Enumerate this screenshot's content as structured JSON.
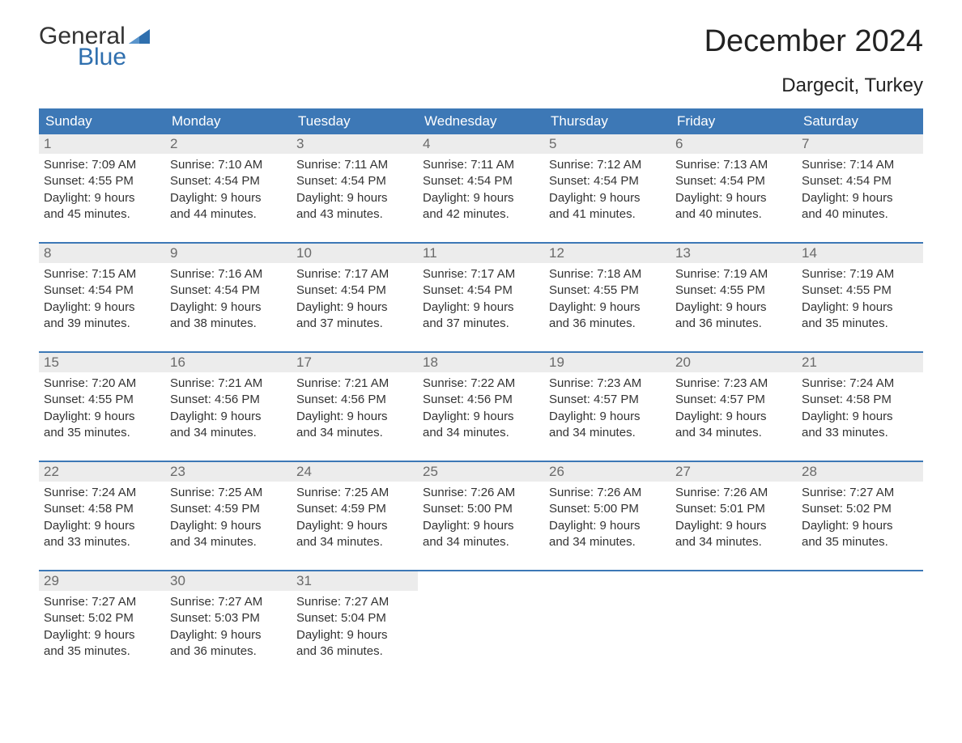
{
  "logo": {
    "general": "General",
    "blue": "Blue"
  },
  "title": "December 2024",
  "location": "Dargecit, Turkey",
  "colors": {
    "header_bg": "#3d78b6",
    "header_fg": "#ffffff",
    "daynum_bg": "#ececec",
    "daynum_fg": "#6a6a6a",
    "body_fg": "#333333",
    "logo_blue": "#2f6fae",
    "week_border": "#3d78b6",
    "page_bg": "#ffffff"
  },
  "day_names": [
    "Sunday",
    "Monday",
    "Tuesday",
    "Wednesday",
    "Thursday",
    "Friday",
    "Saturday"
  ],
  "weeks": [
    [
      {
        "n": "1",
        "sunrise": "Sunrise: 7:09 AM",
        "sunset": "Sunset: 4:55 PM",
        "d1": "Daylight: 9 hours",
        "d2": "and 45 minutes."
      },
      {
        "n": "2",
        "sunrise": "Sunrise: 7:10 AM",
        "sunset": "Sunset: 4:54 PM",
        "d1": "Daylight: 9 hours",
        "d2": "and 44 minutes."
      },
      {
        "n": "3",
        "sunrise": "Sunrise: 7:11 AM",
        "sunset": "Sunset: 4:54 PM",
        "d1": "Daylight: 9 hours",
        "d2": "and 43 minutes."
      },
      {
        "n": "4",
        "sunrise": "Sunrise: 7:11 AM",
        "sunset": "Sunset: 4:54 PM",
        "d1": "Daylight: 9 hours",
        "d2": "and 42 minutes."
      },
      {
        "n": "5",
        "sunrise": "Sunrise: 7:12 AM",
        "sunset": "Sunset: 4:54 PM",
        "d1": "Daylight: 9 hours",
        "d2": "and 41 minutes."
      },
      {
        "n": "6",
        "sunrise": "Sunrise: 7:13 AM",
        "sunset": "Sunset: 4:54 PM",
        "d1": "Daylight: 9 hours",
        "d2": "and 40 minutes."
      },
      {
        "n": "7",
        "sunrise": "Sunrise: 7:14 AM",
        "sunset": "Sunset: 4:54 PM",
        "d1": "Daylight: 9 hours",
        "d2": "and 40 minutes."
      }
    ],
    [
      {
        "n": "8",
        "sunrise": "Sunrise: 7:15 AM",
        "sunset": "Sunset: 4:54 PM",
        "d1": "Daylight: 9 hours",
        "d2": "and 39 minutes."
      },
      {
        "n": "9",
        "sunrise": "Sunrise: 7:16 AM",
        "sunset": "Sunset: 4:54 PM",
        "d1": "Daylight: 9 hours",
        "d2": "and 38 minutes."
      },
      {
        "n": "10",
        "sunrise": "Sunrise: 7:17 AM",
        "sunset": "Sunset: 4:54 PM",
        "d1": "Daylight: 9 hours",
        "d2": "and 37 minutes."
      },
      {
        "n": "11",
        "sunrise": "Sunrise: 7:17 AM",
        "sunset": "Sunset: 4:54 PM",
        "d1": "Daylight: 9 hours",
        "d2": "and 37 minutes."
      },
      {
        "n": "12",
        "sunrise": "Sunrise: 7:18 AM",
        "sunset": "Sunset: 4:55 PM",
        "d1": "Daylight: 9 hours",
        "d2": "and 36 minutes."
      },
      {
        "n": "13",
        "sunrise": "Sunrise: 7:19 AM",
        "sunset": "Sunset: 4:55 PM",
        "d1": "Daylight: 9 hours",
        "d2": "and 36 minutes."
      },
      {
        "n": "14",
        "sunrise": "Sunrise: 7:19 AM",
        "sunset": "Sunset: 4:55 PM",
        "d1": "Daylight: 9 hours",
        "d2": "and 35 minutes."
      }
    ],
    [
      {
        "n": "15",
        "sunrise": "Sunrise: 7:20 AM",
        "sunset": "Sunset: 4:55 PM",
        "d1": "Daylight: 9 hours",
        "d2": "and 35 minutes."
      },
      {
        "n": "16",
        "sunrise": "Sunrise: 7:21 AM",
        "sunset": "Sunset: 4:56 PM",
        "d1": "Daylight: 9 hours",
        "d2": "and 34 minutes."
      },
      {
        "n": "17",
        "sunrise": "Sunrise: 7:21 AM",
        "sunset": "Sunset: 4:56 PM",
        "d1": "Daylight: 9 hours",
        "d2": "and 34 minutes."
      },
      {
        "n": "18",
        "sunrise": "Sunrise: 7:22 AM",
        "sunset": "Sunset: 4:56 PM",
        "d1": "Daylight: 9 hours",
        "d2": "and 34 minutes."
      },
      {
        "n": "19",
        "sunrise": "Sunrise: 7:23 AM",
        "sunset": "Sunset: 4:57 PM",
        "d1": "Daylight: 9 hours",
        "d2": "and 34 minutes."
      },
      {
        "n": "20",
        "sunrise": "Sunrise: 7:23 AM",
        "sunset": "Sunset: 4:57 PM",
        "d1": "Daylight: 9 hours",
        "d2": "and 34 minutes."
      },
      {
        "n": "21",
        "sunrise": "Sunrise: 7:24 AM",
        "sunset": "Sunset: 4:58 PM",
        "d1": "Daylight: 9 hours",
        "d2": "and 33 minutes."
      }
    ],
    [
      {
        "n": "22",
        "sunrise": "Sunrise: 7:24 AM",
        "sunset": "Sunset: 4:58 PM",
        "d1": "Daylight: 9 hours",
        "d2": "and 33 minutes."
      },
      {
        "n": "23",
        "sunrise": "Sunrise: 7:25 AM",
        "sunset": "Sunset: 4:59 PM",
        "d1": "Daylight: 9 hours",
        "d2": "and 34 minutes."
      },
      {
        "n": "24",
        "sunrise": "Sunrise: 7:25 AM",
        "sunset": "Sunset: 4:59 PM",
        "d1": "Daylight: 9 hours",
        "d2": "and 34 minutes."
      },
      {
        "n": "25",
        "sunrise": "Sunrise: 7:26 AM",
        "sunset": "Sunset: 5:00 PM",
        "d1": "Daylight: 9 hours",
        "d2": "and 34 minutes."
      },
      {
        "n": "26",
        "sunrise": "Sunrise: 7:26 AM",
        "sunset": "Sunset: 5:00 PM",
        "d1": "Daylight: 9 hours",
        "d2": "and 34 minutes."
      },
      {
        "n": "27",
        "sunrise": "Sunrise: 7:26 AM",
        "sunset": "Sunset: 5:01 PM",
        "d1": "Daylight: 9 hours",
        "d2": "and 34 minutes."
      },
      {
        "n": "28",
        "sunrise": "Sunrise: 7:27 AM",
        "sunset": "Sunset: 5:02 PM",
        "d1": "Daylight: 9 hours",
        "d2": "and 35 minutes."
      }
    ],
    [
      {
        "n": "29",
        "sunrise": "Sunrise: 7:27 AM",
        "sunset": "Sunset: 5:02 PM",
        "d1": "Daylight: 9 hours",
        "d2": "and 35 minutes."
      },
      {
        "n": "30",
        "sunrise": "Sunrise: 7:27 AM",
        "sunset": "Sunset: 5:03 PM",
        "d1": "Daylight: 9 hours",
        "d2": "and 36 minutes."
      },
      {
        "n": "31",
        "sunrise": "Sunrise: 7:27 AM",
        "sunset": "Sunset: 5:04 PM",
        "d1": "Daylight: 9 hours",
        "d2": "and 36 minutes."
      },
      null,
      null,
      null,
      null
    ]
  ]
}
